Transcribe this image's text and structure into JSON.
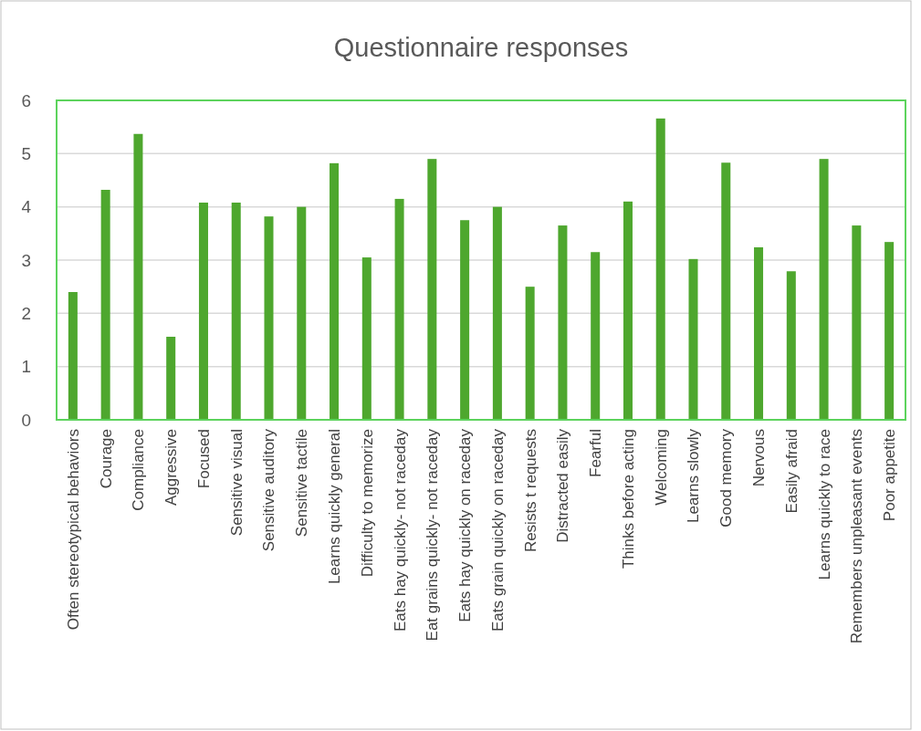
{
  "chart_data": {
    "type": "bar",
    "title": "Questionnaire responses",
    "categories": [
      "Often stereotypical behaviors",
      "Courage",
      "Compliance",
      "Aggressive",
      "Focused",
      "Sensitive visual",
      "Sensitive auditory",
      "Sensitive tactile",
      "Learns quickly general",
      "Difficulty to memorize",
      "Eats hay quickly- not raceday",
      "Eat grains quickly- not raceday",
      "Eats hay quickly on raceday",
      "Eats grain quickly on raceday",
      "Resists t requests",
      "Distracted easily",
      "Fearful",
      "Thinks before acting",
      "Welcoming",
      "Learns slowly",
      "Good memory",
      "Nervous",
      "Easily afraid",
      "Learns quickly to race",
      "Remembers unpleasant events",
      "Poor appetite"
    ],
    "values": [
      2.4,
      4.32,
      5.37,
      1.56,
      4.08,
      4.08,
      3.82,
      4.0,
      4.82,
      3.05,
      4.15,
      4.9,
      3.75,
      4.0,
      2.5,
      3.65,
      3.15,
      4.1,
      5.66,
      3.02,
      4.83,
      3.24,
      2.79,
      4.9,
      3.65,
      3.34
    ],
    "color": "#4ea72e",
    "ylim": [
      0,
      6
    ],
    "yticks": [
      0,
      1,
      2,
      3,
      4,
      5,
      6
    ],
    "grid": "y"
  }
}
